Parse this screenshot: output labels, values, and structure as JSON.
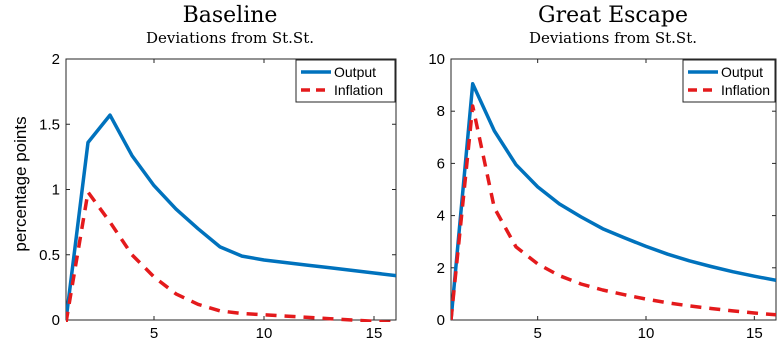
{
  "chart_data": [
    {
      "type": "line",
      "title": "Baseline",
      "subtitle": "Deviations from St.St.",
      "xlabel": "",
      "ylabel": "percentage points",
      "xlim": [
        1,
        16
      ],
      "ylim": [
        0,
        2
      ],
      "x": [
        1,
        2,
        3,
        4,
        5,
        6,
        7,
        8,
        9,
        10,
        11,
        12,
        13,
        14,
        15,
        16
      ],
      "xticks": [
        5,
        10,
        15
      ],
      "yticks": [
        0,
        0.5,
        1,
        1.5,
        2
      ],
      "ytick_labels": [
        "0",
        "0.5",
        "1",
        "1.5",
        "2"
      ],
      "xtick_labels": [
        "5",
        "10",
        "15"
      ],
      "grid": false,
      "legend_position": "top-right",
      "series": [
        {
          "name": "Output",
          "color": "#0072BD",
          "style": "solid",
          "values": [
            0.0,
            1.36,
            1.57,
            1.26,
            1.03,
            0.85,
            0.7,
            0.56,
            0.49,
            0.46,
            0.44,
            0.42,
            0.4,
            0.38,
            0.36,
            0.34
          ]
        },
        {
          "name": "Inflation",
          "color": "#E41A1C",
          "style": "dashed",
          "values": [
            -0.02,
            0.98,
            0.75,
            0.5,
            0.33,
            0.2,
            0.12,
            0.07,
            0.05,
            0.04,
            0.03,
            0.02,
            0.01,
            0.0,
            -0.01,
            -0.02
          ]
        }
      ]
    },
    {
      "type": "line",
      "title": "Great Escape",
      "subtitle": "Deviations from St.St.",
      "xlabel": "",
      "ylabel": "",
      "xlim": [
        1,
        16
      ],
      "ylim": [
        0,
        10
      ],
      "x": [
        1,
        2,
        3,
        4,
        5,
        6,
        7,
        8,
        9,
        10,
        11,
        12,
        13,
        14,
        15,
        16
      ],
      "xticks": [
        5,
        10,
        15
      ],
      "yticks": [
        0,
        2,
        4,
        6,
        8,
        10
      ],
      "ytick_labels": [
        "0",
        "2",
        "4",
        "6",
        "8",
        "10"
      ],
      "xtick_labels": [
        "5",
        "10",
        "15"
      ],
      "grid": false,
      "legend_position": "top-right",
      "series": [
        {
          "name": "Output",
          "color": "#0072BD",
          "style": "solid",
          "values": [
            0.0,
            9.05,
            7.25,
            5.95,
            5.1,
            4.45,
            3.95,
            3.5,
            3.15,
            2.82,
            2.52,
            2.27,
            2.05,
            1.85,
            1.68,
            1.52
          ]
        },
        {
          "name": "Inflation",
          "color": "#E41A1C",
          "style": "dashed",
          "values": [
            0.0,
            8.2,
            4.3,
            2.8,
            2.15,
            1.7,
            1.38,
            1.15,
            0.97,
            0.8,
            0.66,
            0.54,
            0.44,
            0.35,
            0.27,
            0.2
          ]
        }
      ]
    }
  ]
}
